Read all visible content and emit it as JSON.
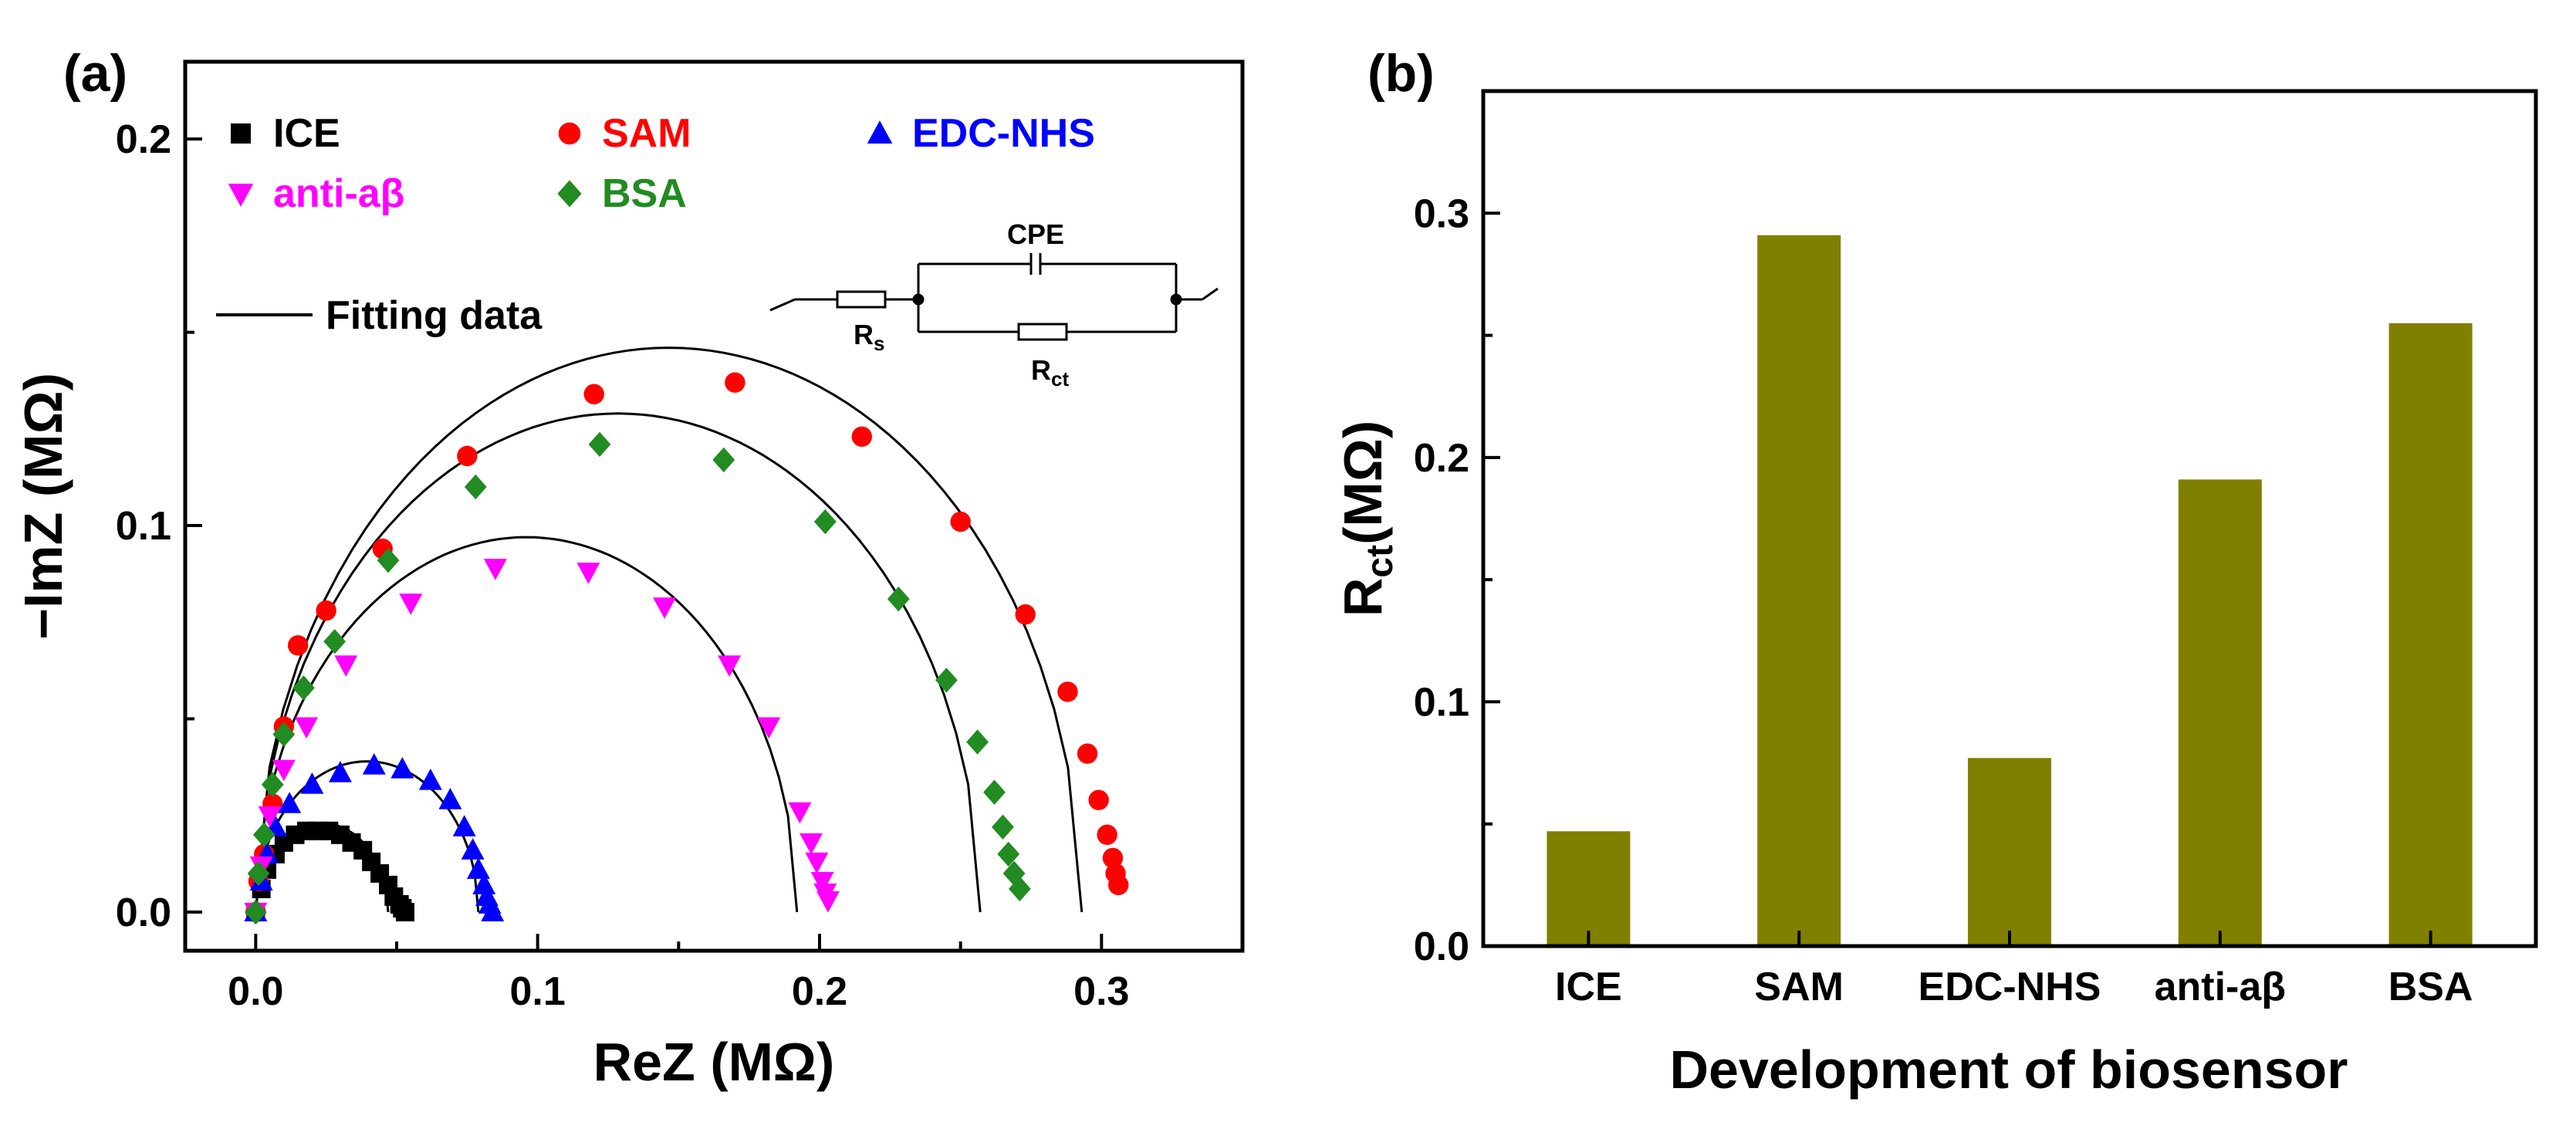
{
  "chart_data": [
    {
      "panel": "(a)",
      "type": "scatter",
      "title": "",
      "xlabel": "ReZ (MΩ)",
      "ylabel": "−ImZ (MΩ)",
      "xlim": [
        -0.025,
        0.35
      ],
      "ylim": [
        -0.01,
        0.22
      ],
      "xticks": [
        "0.0",
        "0.1",
        "0.2",
        "0.3"
      ],
      "yticks": [
        "0.0",
        "0.1",
        "0.2"
      ],
      "legend_fit_label": "Fitting data",
      "series": [
        {
          "name": "ICE",
          "marker": "square",
          "color": "#000000",
          "x": [
            0.0,
            0.002,
            0.004,
            0.007,
            0.01,
            0.014,
            0.018,
            0.022,
            0.026,
            0.03,
            0.034,
            0.038,
            0.041,
            0.044,
            0.047,
            0.049,
            0.051,
            0.052,
            0.053
          ],
          "y": [
            0.0,
            0.006,
            0.011,
            0.015,
            0.018,
            0.02,
            0.021,
            0.021,
            0.021,
            0.02,
            0.018,
            0.016,
            0.013,
            0.01,
            0.007,
            0.004,
            0.002,
            0.001,
            0.0
          ]
        },
        {
          "name": "SAM",
          "marker": "circle",
          "color": "#ff0000",
          "x": [
            0.0,
            0.001,
            0.003,
            0.006,
            0.01,
            0.015,
            0.025,
            0.045,
            0.075,
            0.12,
            0.17,
            0.215,
            0.25,
            0.273,
            0.288,
            0.295,
            0.299,
            0.302,
            0.304,
            0.305,
            0.306
          ],
          "y": [
            0.0,
            0.008,
            0.015,
            0.028,
            0.048,
            0.069,
            0.078,
            0.094,
            0.118,
            0.134,
            0.137,
            0.123,
            0.101,
            0.077,
            0.057,
            0.041,
            0.029,
            0.02,
            0.014,
            0.01,
            0.007
          ]
        },
        {
          "name": "EDC-NHS",
          "marker": "triangle-up",
          "color": "#0000ff",
          "x": [
            0.0,
            0.002,
            0.004,
            0.007,
            0.012,
            0.02,
            0.03,
            0.042,
            0.052,
            0.062,
            0.069,
            0.074,
            0.077,
            0.079,
            0.081,
            0.082,
            0.083,
            0.084
          ],
          "y": [
            0.0,
            0.008,
            0.015,
            0.022,
            0.028,
            0.033,
            0.036,
            0.038,
            0.037,
            0.034,
            0.029,
            0.022,
            0.016,
            0.011,
            0.007,
            0.004,
            0.002,
            0.0
          ]
        },
        {
          "name": "anti-aβ",
          "marker": "triangle-down",
          "color": "#ff00ff",
          "x": [
            0.0,
            0.002,
            0.005,
            0.01,
            0.018,
            0.032,
            0.055,
            0.085,
            0.118,
            0.145,
            0.168,
            0.182,
            0.193,
            0.197,
            0.199,
            0.201,
            0.202,
            0.203
          ],
          "y": [
            0.0,
            0.012,
            0.025,
            0.037,
            0.048,
            0.064,
            0.08,
            0.089,
            0.088,
            0.079,
            0.064,
            0.048,
            0.026,
            0.018,
            0.013,
            0.008,
            0.005,
            0.003
          ]
        },
        {
          "name": "BSA",
          "marker": "diamond",
          "color": "#228b22",
          "x": [
            0.0,
            0.001,
            0.003,
            0.006,
            0.01,
            0.017,
            0.028,
            0.047,
            0.078,
            0.122,
            0.166,
            0.202,
            0.228,
            0.245,
            0.256,
            0.262,
            0.265,
            0.267,
            0.269,
            0.271
          ],
          "y": [
            0.0,
            0.01,
            0.02,
            0.033,
            0.046,
            0.058,
            0.07,
            0.091,
            0.11,
            0.121,
            0.117,
            0.101,
            0.081,
            0.06,
            0.044,
            0.031,
            0.022,
            0.015,
            0.01,
            0.006
          ]
        }
      ],
      "fits": [
        {
          "name": "SAM fit",
          "r": 0.146,
          "x_end": 0.293
        },
        {
          "name": "BSA fit",
          "r": 0.129,
          "x_end": 0.257
        },
        {
          "name": "anti-aβ fit",
          "r": 0.097,
          "x_end": 0.192
        },
        {
          "name": "EDC-NHS fit",
          "r": 0.039,
          "x_end": 0.079
        },
        {
          "name": "ICE fit",
          "r": 0.023,
          "x_end": 0.047
        }
      ],
      "inset": {
        "cpe_label": "CPE",
        "rs_label": "R",
        "rs_sub": "s",
        "rct_label": "R",
        "rct_sub": "ct"
      }
    },
    {
      "panel": "(b)",
      "type": "bar",
      "title": "",
      "xlabel": "Development of biosensor",
      "ylabel_main": "R",
      "ylabel_sub": "ct",
      "ylabel_unit": "(MΩ)",
      "categories": [
        "ICE",
        "SAM",
        "EDC-NHS",
        "anti-aβ",
        "BSA"
      ],
      "values": [
        0.047,
        0.291,
        0.077,
        0.191,
        0.255
      ],
      "ylim": [
        0,
        0.35
      ],
      "yticks": [
        "0.0",
        "0.1",
        "0.2",
        "0.3"
      ],
      "bar_color": "#808000"
    }
  ]
}
